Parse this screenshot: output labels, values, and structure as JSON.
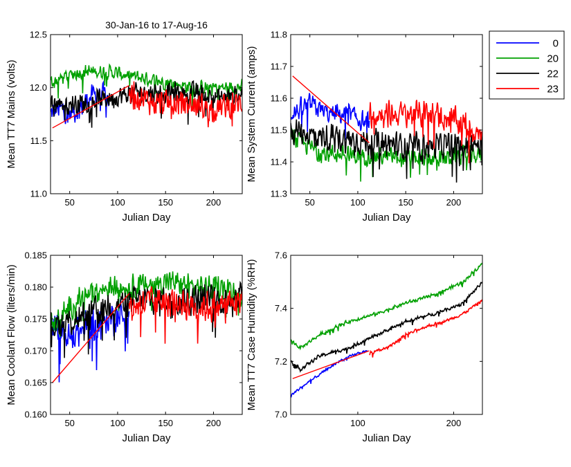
{
  "figure": {
    "title": "30-Jan-16 to 17-Aug-16"
  },
  "legend": {
    "placement": "top-right, outside plots",
    "entries": [
      {
        "label": "0",
        "color": "#0000ff"
      },
      {
        "label": "20",
        "color": "#00a000"
      },
      {
        "label": "22",
        "color": "#000000"
      },
      {
        "label": "23",
        "color": "#ff0000"
      }
    ]
  },
  "chart_data": [
    {
      "type": "line",
      "ylabel": "Mean TT7 Mains  (volts)",
      "xlabel": "Julian Day",
      "xlim": [
        30,
        230
      ],
      "ylim": [
        11.0,
        12.5
      ],
      "xticks": [
        50,
        100,
        150,
        200
      ],
      "yticks": [
        11.0,
        11.5,
        12.0,
        12.5
      ],
      "ytick_labels": [
        "11.0",
        "11.5",
        "12.0",
        "12.5"
      ],
      "grid": false,
      "series": [
        {
          "name": "0",
          "color": "#0000ff",
          "x_range": [
            30,
            92
          ],
          "points": [
            [
              30,
              11.75
            ],
            [
              40,
              11.8
            ],
            [
              50,
              11.75
            ],
            [
              60,
              11.8
            ],
            [
              70,
              11.9
            ],
            [
              80,
              11.95
            ],
            [
              90,
              11.9
            ]
          ],
          "noise": 0.13
        },
        {
          "name": "20",
          "color": "#00a000",
          "x_range": [
            30,
            230
          ],
          "points": [
            [
              30,
              12.05
            ],
            [
              60,
              12.15
            ],
            [
              90,
              12.15
            ],
            [
              120,
              12.1
            ],
            [
              150,
              12.05
            ],
            [
              180,
              12.0
            ],
            [
              210,
              12.0
            ],
            [
              230,
              12.0
            ]
          ],
          "noise": 0.08
        },
        {
          "name": "22",
          "color": "#000000",
          "x_range": [
            30,
            230
          ],
          "points": [
            [
              30,
              11.85
            ],
            [
              60,
              11.85
            ],
            [
              90,
              11.9
            ],
            [
              120,
              11.95
            ],
            [
              150,
              11.95
            ],
            [
              180,
              11.95
            ],
            [
              210,
              11.9
            ],
            [
              230,
              11.95
            ]
          ],
          "noise": 0.12
        },
        {
          "name": "23",
          "color": "#ff0000",
          "x_range": [
            112,
            230
          ],
          "points": [
            [
              112,
              11.95
            ],
            [
              140,
              11.85
            ],
            [
              170,
              11.85
            ],
            [
              200,
              11.8
            ],
            [
              230,
              11.85
            ]
          ],
          "noise": 0.15
        }
      ],
      "trend": {
        "color": "#ff0000",
        "points": [
          [
            32,
            11.62
          ],
          [
            112,
            12.02
          ]
        ]
      }
    },
    {
      "type": "line",
      "ylabel": "Mean System Current (amps)",
      "xlabel": "Julian Day",
      "xlim": [
        30,
        230
      ],
      "ylim": [
        11.3,
        11.8
      ],
      "xticks": [
        50,
        100,
        150,
        200
      ],
      "yticks": [
        11.3,
        11.4,
        11.5,
        11.6,
        11.7,
        11.8
      ],
      "ytick_labels": [
        "11.3",
        "11.4",
        "11.5",
        "11.6",
        "11.7",
        "11.8"
      ],
      "grid": false,
      "series": [
        {
          "name": "0",
          "color": "#0000ff",
          "x_range": [
            30,
            112
          ],
          "points": [
            [
              30,
              11.55
            ],
            [
              50,
              11.58
            ],
            [
              70,
              11.55
            ],
            [
              90,
              11.55
            ],
            [
              110,
              11.52
            ]
          ],
          "noise": 0.04
        },
        {
          "name": "20",
          "color": "#00a000",
          "x_range": [
            30,
            230
          ],
          "points": [
            [
              30,
              11.48
            ],
            [
              60,
              11.43
            ],
            [
              90,
              11.42
            ],
            [
              120,
              11.42
            ],
            [
              150,
              11.41
            ],
            [
              180,
              11.41
            ],
            [
              210,
              11.42
            ],
            [
              230,
              11.42
            ]
          ],
          "noise": 0.035
        },
        {
          "name": "22",
          "color": "#000000",
          "x_range": [
            30,
            230
          ],
          "points": [
            [
              30,
              11.5
            ],
            [
              60,
              11.48
            ],
            [
              90,
              11.47
            ],
            [
              120,
              11.46
            ],
            [
              150,
              11.45
            ],
            [
              180,
              11.45
            ],
            [
              210,
              11.45
            ],
            [
              230,
              11.45
            ]
          ],
          "noise": 0.05
        },
        {
          "name": "23",
          "color": "#ff0000",
          "x_range": [
            112,
            230
          ],
          "points": [
            [
              112,
              11.55
            ],
            [
              150,
              11.55
            ],
            [
              180,
              11.55
            ],
            [
              210,
              11.52
            ],
            [
              230,
              11.48
            ]
          ],
          "noise": 0.05
        }
      ],
      "trend": {
        "color": "#ff0000",
        "points": [
          [
            32,
            11.67
          ],
          [
            112,
            11.46
          ]
        ]
      }
    },
    {
      "type": "line",
      "ylabel": "Mean Coolant Flow (liters/min)",
      "xlabel": "Julian Day",
      "xlim": [
        30,
        230
      ],
      "ylim": [
        0.16,
        0.185
      ],
      "xticks": [
        50,
        100,
        150,
        200
      ],
      "yticks": [
        0.16,
        0.165,
        0.17,
        0.175,
        0.18,
        0.185
      ],
      "ytick_labels": [
        "0.160",
        "0.165",
        "0.170",
        "0.175",
        "0.180",
        "0.185"
      ],
      "grid": false,
      "series": [
        {
          "name": "0",
          "color": "#0000ff",
          "x_range": [
            30,
            112
          ],
          "points": [
            [
              30,
              0.174
            ],
            [
              50,
              0.172
            ],
            [
              70,
              0.174
            ],
            [
              90,
              0.175
            ],
            [
              110,
              0.176
            ]
          ],
          "noise": 0.003
        },
        {
          "name": "20",
          "color": "#00a000",
          "x_range": [
            30,
            230
          ],
          "points": [
            [
              30,
              0.174
            ],
            [
              60,
              0.178
            ],
            [
              90,
              0.18
            ],
            [
              120,
              0.18
            ],
            [
              150,
              0.181
            ],
            [
              180,
              0.18
            ],
            [
              210,
              0.18
            ],
            [
              230,
              0.179
            ]
          ],
          "noise": 0.0022
        },
        {
          "name": "22",
          "color": "#000000",
          "x_range": [
            30,
            230
          ],
          "points": [
            [
              30,
              0.174
            ],
            [
              60,
              0.175
            ],
            [
              90,
              0.177
            ],
            [
              120,
              0.178
            ],
            [
              150,
              0.178
            ],
            [
              180,
              0.178
            ],
            [
              210,
              0.178
            ],
            [
              230,
              0.179
            ]
          ],
          "noise": 0.0028
        },
        {
          "name": "23",
          "color": "#ff0000",
          "x_range": [
            112,
            230
          ],
          "points": [
            [
              112,
              0.177
            ],
            [
              150,
              0.178
            ],
            [
              180,
              0.177
            ],
            [
              210,
              0.177
            ],
            [
              230,
              0.178
            ]
          ],
          "noise": 0.003
        }
      ],
      "trend": {
        "color": "#ff0000",
        "points": [
          [
            32,
            0.165
          ],
          [
            112,
            0.179
          ]
        ]
      }
    },
    {
      "type": "line",
      "ylabel": "Mean TT7 Case Humidity (%RH)",
      "xlabel": "Julian Day",
      "xlim": [
        30,
        230
      ],
      "ylim": [
        7.0,
        7.6
      ],
      "xticks": [
        100,
        200
      ],
      "yticks": [
        7.0,
        7.2,
        7.4,
        7.6
      ],
      "ytick_labels": [
        "7.0",
        "7.2",
        "7.4",
        "7.6"
      ],
      "grid": false,
      "series": [
        {
          "name": "0",
          "color": "#0000ff",
          "x_range": [
            30,
            110
          ],
          "points": [
            [
              30,
              7.07
            ],
            [
              40,
              7.1
            ],
            [
              60,
              7.15
            ],
            [
              80,
              7.2
            ],
            [
              100,
              7.23
            ],
            [
              110,
              7.24
            ]
          ],
          "noise": 0.006
        },
        {
          "name": "20",
          "color": "#00a000",
          "x_range": [
            30,
            230
          ],
          "points": [
            [
              30,
              7.28
            ],
            [
              40,
              7.25
            ],
            [
              60,
              7.3
            ],
            [
              90,
              7.35
            ],
            [
              120,
              7.38
            ],
            [
              150,
              7.42
            ],
            [
              180,
              7.45
            ],
            [
              210,
              7.5
            ],
            [
              230,
              7.57
            ]
          ],
          "noise": 0.008
        },
        {
          "name": "22",
          "color": "#000000",
          "x_range": [
            30,
            230
          ],
          "points": [
            [
              30,
              7.2
            ],
            [
              40,
              7.17
            ],
            [
              60,
              7.22
            ],
            [
              90,
              7.25
            ],
            [
              120,
              7.3
            ],
            [
              150,
              7.35
            ],
            [
              180,
              7.38
            ],
            [
              210,
              7.42
            ],
            [
              230,
              7.5
            ]
          ],
          "noise": 0.008
        },
        {
          "name": "23",
          "color": "#ff0000",
          "x_range": [
            112,
            230
          ],
          "points": [
            [
              112,
              7.23
            ],
            [
              130,
              7.25
            ],
            [
              150,
              7.3
            ],
            [
              170,
              7.33
            ],
            [
              190,
              7.35
            ],
            [
              210,
              7.38
            ],
            [
              230,
              7.43
            ]
          ],
          "noise": 0.007
        }
      ],
      "trend": {
        "color": "#ff0000",
        "points": [
          [
            32,
            7.135
          ],
          [
            112,
            7.24
          ]
        ]
      }
    }
  ]
}
